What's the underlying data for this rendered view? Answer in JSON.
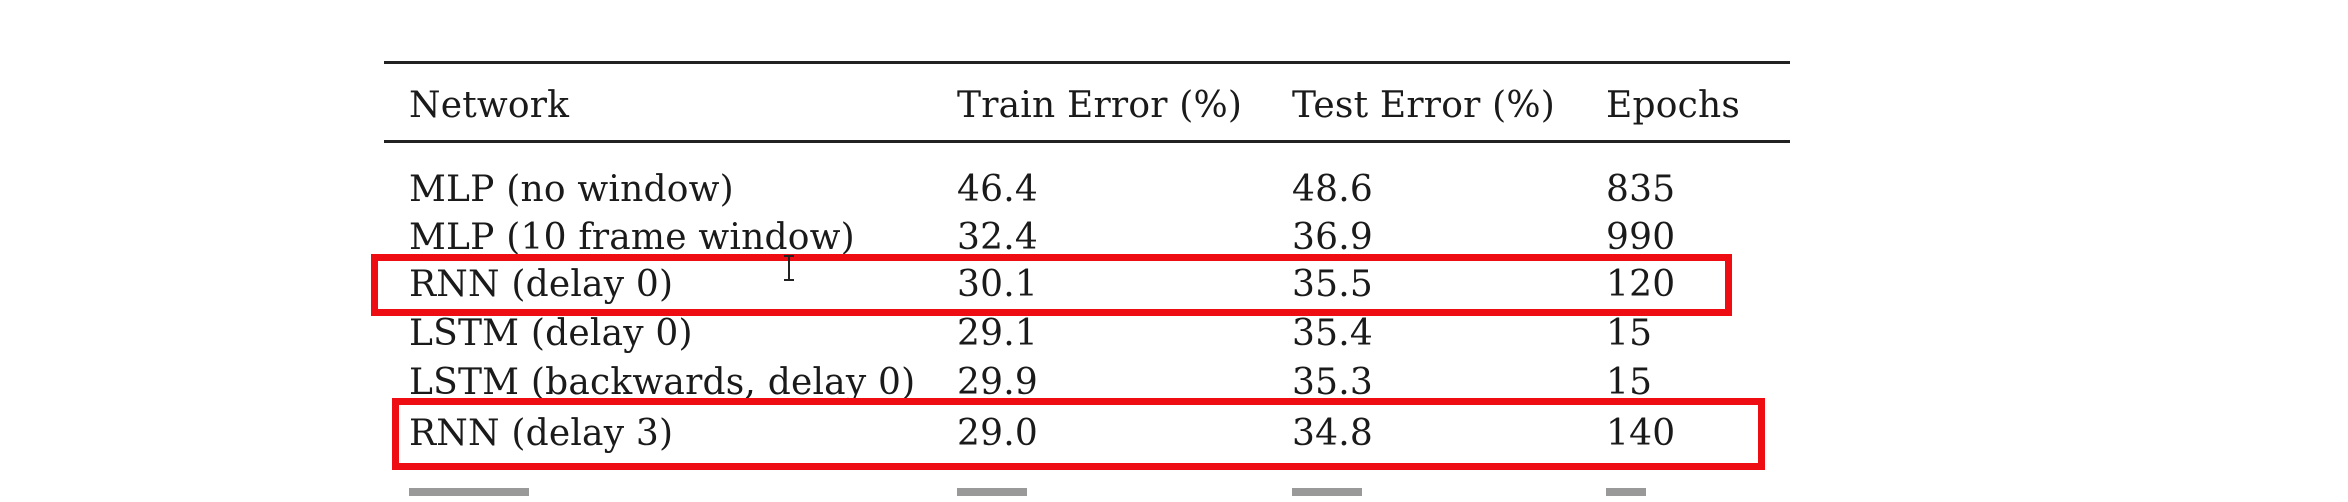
{
  "table": {
    "headers": [
      "Network",
      "Train Error (%)",
      "Test Error (%)",
      "Epochs"
    ],
    "rows": [
      [
        "MLP (no window)",
        "46.4",
        "48.6",
        "835"
      ],
      [
        "MLP (10 frame window)",
        "32.4",
        "36.9",
        "990"
      ],
      [
        "RNN (delay 0)",
        "30.1",
        "35.5",
        "120"
      ],
      [
        "LSTM (delay 0)",
        "29.1",
        "35.4",
        "15"
      ],
      [
        "LSTM (backwards, delay 0)",
        "29.9",
        "35.3",
        "15"
      ],
      [
        "RNN (delay 3)",
        "29.0",
        "34.8",
        "140"
      ]
    ],
    "highlighted_rows": [
      "RNN (delay 0)",
      "RNN (delay 3)"
    ]
  },
  "colors": {
    "highlight": "#ee0d12",
    "rule": "#222222"
  },
  "icons": {
    "cursor": "text-cursor-icon"
  }
}
